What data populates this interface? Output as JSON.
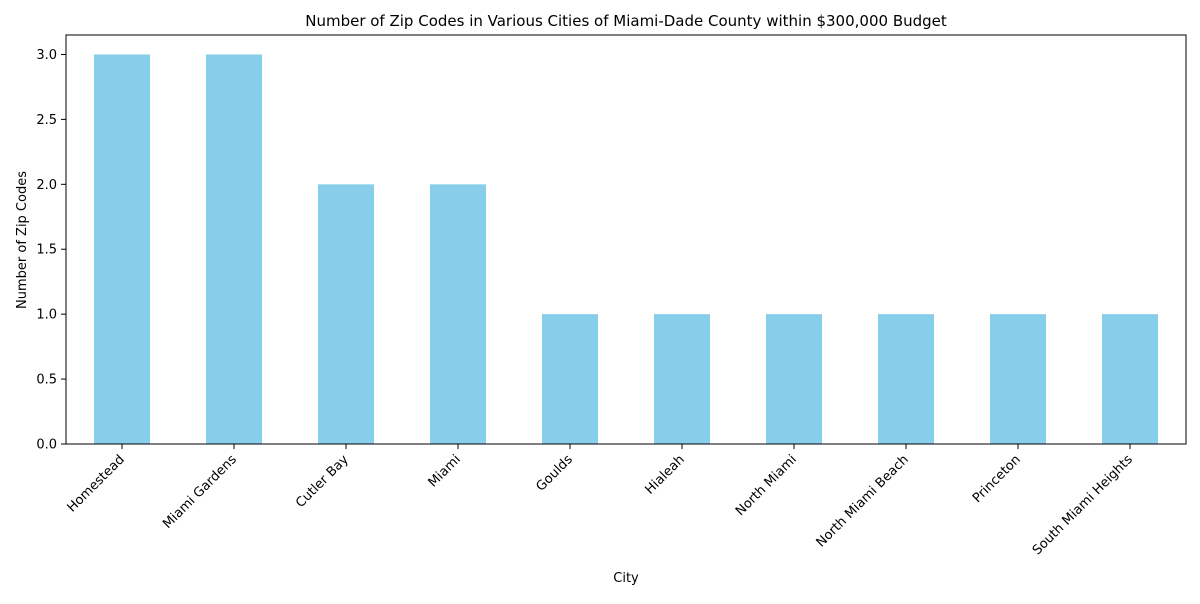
{
  "chart_data": {
    "type": "bar",
    "title": "Number of Zip Codes in Various Cities of Miami-Dade County within $300,000 Budget",
    "xlabel": "City",
    "ylabel": "Number of Zip Codes",
    "categories": [
      "Homestead",
      "Miami Gardens",
      "Cutler Bay",
      "Miami",
      "Goulds",
      "Hialeah",
      "North Miami",
      "North Miami Beach",
      "Princeton",
      "South Miami Heights"
    ],
    "values": [
      3,
      3,
      2,
      2,
      1,
      1,
      1,
      1,
      1,
      1
    ],
    "ylim": [
      0,
      3.15
    ],
    "yticks": [
      "0.0",
      "0.5",
      "1.0",
      "1.5",
      "2.0",
      "2.5",
      "3.0"
    ],
    "bar_color": "#87ceeb",
    "grid": false,
    "legend": "none"
  }
}
